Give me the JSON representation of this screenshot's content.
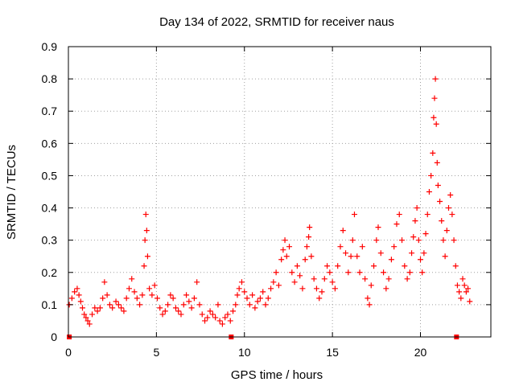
{
  "chart_data": {
    "type": "scatter",
    "title": "Day 134 of 2022, SRMTID for receiver naus",
    "xlabel": "GPS time / hours",
    "ylabel": "SRMTID / TECUs",
    "xlim": [
      0,
      24
    ],
    "ylim": [
      0,
      0.9
    ],
    "x_ticks": [
      0,
      5,
      10,
      15,
      20
    ],
    "x_tick_labels": [
      "0",
      "5",
      "10",
      "15",
      "20"
    ],
    "y_ticks": [
      0,
      0.1,
      0.2,
      0.3,
      0.4,
      0.5,
      0.6,
      0.7,
      0.8,
      0.9
    ],
    "y_tick_labels": [
      "0",
      "0.1",
      "0.2",
      "0.3",
      "0.4",
      "0.5",
      "0.6",
      "0.7",
      "0.8",
      "0.9"
    ],
    "grid": true,
    "marker": "+",
    "series_color": "#ff0000",
    "gap_markers": {
      "marker": "square",
      "x": [
        0.05,
        9.25,
        22.05
      ],
      "y": [
        0,
        0,
        0
      ]
    },
    "series": [
      {
        "name": "SRMTID",
        "points": [
          [
            0.05,
            0.1
          ],
          [
            0.2,
            0.12
          ],
          [
            0.35,
            0.14
          ],
          [
            0.5,
            0.15
          ],
          [
            0.6,
            0.13
          ],
          [
            0.7,
            0.11
          ],
          [
            0.8,
            0.09
          ],
          [
            0.9,
            0.07
          ],
          [
            1.0,
            0.06
          ],
          [
            1.1,
            0.05
          ],
          [
            1.2,
            0.04
          ],
          [
            1.35,
            0.07
          ],
          [
            1.5,
            0.09
          ],
          [
            1.65,
            0.08
          ],
          [
            1.8,
            0.09
          ],
          [
            1.95,
            0.12
          ],
          [
            2.05,
            0.17
          ],
          [
            2.2,
            0.13
          ],
          [
            2.35,
            0.1
          ],
          [
            2.5,
            0.09
          ],
          [
            2.7,
            0.11
          ],
          [
            2.85,
            0.1
          ],
          [
            3.0,
            0.09
          ],
          [
            3.15,
            0.08
          ],
          [
            3.3,
            0.12
          ],
          [
            3.45,
            0.15
          ],
          [
            3.6,
            0.18
          ],
          [
            3.75,
            0.14
          ],
          [
            3.9,
            0.12
          ],
          [
            4.05,
            0.1
          ],
          [
            4.2,
            0.13
          ],
          [
            4.3,
            0.22
          ],
          [
            4.35,
            0.3
          ],
          [
            4.4,
            0.38
          ],
          [
            4.45,
            0.33
          ],
          [
            4.5,
            0.25
          ],
          [
            4.6,
            0.15
          ],
          [
            4.75,
            0.13
          ],
          [
            4.9,
            0.16
          ],
          [
            5.05,
            0.12
          ],
          [
            5.2,
            0.09
          ],
          [
            5.35,
            0.07
          ],
          [
            5.5,
            0.08
          ],
          [
            5.65,
            0.1
          ],
          [
            5.8,
            0.13
          ],
          [
            5.95,
            0.12
          ],
          [
            6.1,
            0.09
          ],
          [
            6.25,
            0.08
          ],
          [
            6.4,
            0.07
          ],
          [
            6.55,
            0.1
          ],
          [
            6.7,
            0.13
          ],
          [
            6.85,
            0.11
          ],
          [
            7.0,
            0.09
          ],
          [
            7.15,
            0.12
          ],
          [
            7.3,
            0.17
          ],
          [
            7.45,
            0.1
          ],
          [
            7.6,
            0.07
          ],
          [
            7.75,
            0.05
          ],
          [
            7.9,
            0.06
          ],
          [
            8.05,
            0.08
          ],
          [
            8.2,
            0.07
          ],
          [
            8.35,
            0.06
          ],
          [
            8.5,
            0.1
          ],
          [
            8.6,
            0.05
          ],
          [
            8.75,
            0.04
          ],
          [
            8.9,
            0.06
          ],
          [
            9.05,
            0.07
          ],
          [
            9.2,
            0.05
          ],
          [
            9.35,
            0.08
          ],
          [
            9.5,
            0.1
          ],
          [
            9.6,
            0.13
          ],
          [
            9.7,
            0.15
          ],
          [
            9.85,
            0.17
          ],
          [
            10.0,
            0.14
          ],
          [
            10.15,
            0.12
          ],
          [
            10.3,
            0.1
          ],
          [
            10.45,
            0.13
          ],
          [
            10.6,
            0.09
          ],
          [
            10.75,
            0.11
          ],
          [
            10.9,
            0.12
          ],
          [
            11.05,
            0.14
          ],
          [
            11.2,
            0.1
          ],
          [
            11.35,
            0.12
          ],
          [
            11.5,
            0.15
          ],
          [
            11.65,
            0.17
          ],
          [
            11.8,
            0.2
          ],
          [
            11.95,
            0.16
          ],
          [
            12.1,
            0.24
          ],
          [
            12.2,
            0.27
          ],
          [
            12.3,
            0.3
          ],
          [
            12.4,
            0.25
          ],
          [
            12.55,
            0.28
          ],
          [
            12.7,
            0.2
          ],
          [
            12.85,
            0.17
          ],
          [
            13.0,
            0.22
          ],
          [
            13.15,
            0.19
          ],
          [
            13.3,
            0.15
          ],
          [
            13.45,
            0.24
          ],
          [
            13.55,
            0.28
          ],
          [
            13.65,
            0.31
          ],
          [
            13.7,
            0.34
          ],
          [
            13.8,
            0.25
          ],
          [
            13.95,
            0.18
          ],
          [
            14.1,
            0.15
          ],
          [
            14.25,
            0.12
          ],
          [
            14.4,
            0.14
          ],
          [
            14.55,
            0.18
          ],
          [
            14.7,
            0.22
          ],
          [
            14.85,
            0.2
          ],
          [
            15.0,
            0.17
          ],
          [
            15.15,
            0.15
          ],
          [
            15.3,
            0.22
          ],
          [
            15.45,
            0.28
          ],
          [
            15.6,
            0.33
          ],
          [
            15.75,
            0.26
          ],
          [
            15.9,
            0.2
          ],
          [
            16.05,
            0.25
          ],
          [
            16.15,
            0.3
          ],
          [
            16.25,
            0.38
          ],
          [
            16.4,
            0.25
          ],
          [
            16.55,
            0.2
          ],
          [
            16.7,
            0.28
          ],
          [
            16.85,
            0.18
          ],
          [
            17.0,
            0.12
          ],
          [
            17.1,
            0.1
          ],
          [
            17.2,
            0.16
          ],
          [
            17.35,
            0.22
          ],
          [
            17.5,
            0.3
          ],
          [
            17.6,
            0.34
          ],
          [
            17.75,
            0.26
          ],
          [
            17.9,
            0.2
          ],
          [
            18.05,
            0.15
          ],
          [
            18.2,
            0.18
          ],
          [
            18.35,
            0.24
          ],
          [
            18.5,
            0.28
          ],
          [
            18.65,
            0.35
          ],
          [
            18.8,
            0.38
          ],
          [
            18.95,
            0.3
          ],
          [
            19.1,
            0.22
          ],
          [
            19.25,
            0.18
          ],
          [
            19.4,
            0.2
          ],
          [
            19.5,
            0.26
          ],
          [
            19.6,
            0.31
          ],
          [
            19.7,
            0.36
          ],
          [
            19.8,
            0.4
          ],
          [
            19.9,
            0.3
          ],
          [
            20.0,
            0.24
          ],
          [
            20.1,
            0.2
          ],
          [
            20.2,
            0.26
          ],
          [
            20.3,
            0.32
          ],
          [
            20.4,
            0.38
          ],
          [
            20.5,
            0.45
          ],
          [
            20.6,
            0.5
          ],
          [
            20.7,
            0.57
          ],
          [
            20.75,
            0.68
          ],
          [
            20.8,
            0.74
          ],
          [
            20.85,
            0.8
          ],
          [
            20.9,
            0.66
          ],
          [
            20.95,
            0.54
          ],
          [
            21.0,
            0.47
          ],
          [
            21.1,
            0.42
          ],
          [
            21.2,
            0.36
          ],
          [
            21.3,
            0.3
          ],
          [
            21.4,
            0.25
          ],
          [
            21.5,
            0.33
          ],
          [
            21.6,
            0.4
          ],
          [
            21.7,
            0.44
          ],
          [
            21.8,
            0.38
          ],
          [
            21.9,
            0.3
          ],
          [
            22.0,
            0.22
          ],
          [
            22.1,
            0.16
          ],
          [
            22.2,
            0.14
          ],
          [
            22.3,
            0.12
          ],
          [
            22.4,
            0.18
          ],
          [
            22.5,
            0.16
          ],
          [
            22.6,
            0.14
          ],
          [
            22.7,
            0.15
          ],
          [
            22.8,
            0.11
          ]
        ]
      }
    ]
  }
}
